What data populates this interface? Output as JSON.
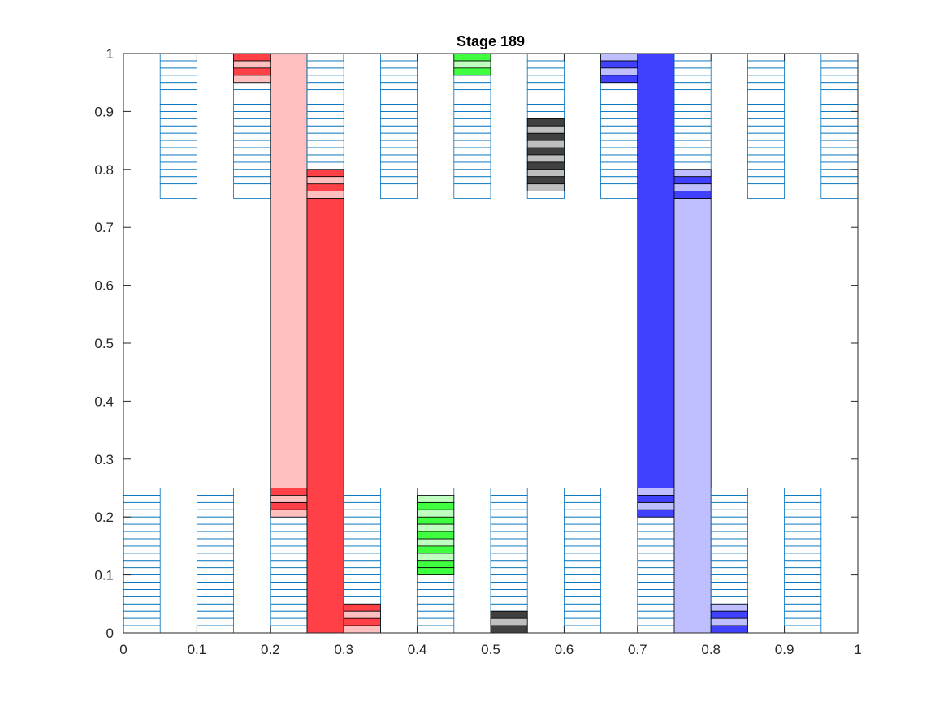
{
  "chart_data": {
    "type": "bar",
    "title": "Stage 189",
    "xlabel": "",
    "ylabel": "",
    "xlim": [
      0,
      1
    ],
    "ylim": [
      0,
      1
    ],
    "xticks": [
      "0",
      "0.1",
      "0.2",
      "0.3",
      "0.4",
      "0.5",
      "0.6",
      "0.7",
      "0.8",
      "0.9",
      "1"
    ],
    "yticks": [
      "0",
      "0.1",
      "0.2",
      "0.3",
      "0.4",
      "0.5",
      "0.6",
      "0.7",
      "0.8",
      "0.9",
      "1"
    ],
    "grid": false,
    "legend": "none",
    "cell_height": 0.0125,
    "colors": {
      "empty_outline": "#0072bd",
      "red": "#ff4046",
      "pink": "#ffbfbf",
      "green": "#40ff40",
      "lightgreen": "#bfffbf",
      "dark": "#404040",
      "gray": "#bfbfbf",
      "blue": "#4040ff",
      "lightblue": "#bfbfff",
      "edge": "#000000"
    },
    "columns": [
      {
        "x": [
          0.0,
          0.05
        ],
        "empty": [
          [
            0.0,
            0.25
          ]
        ],
        "segments": []
      },
      {
        "x": [
          0.05,
          0.1
        ],
        "empty": [
          [
            0.75,
            1.0
          ]
        ],
        "segments": []
      },
      {
        "x": [
          0.1,
          0.15
        ],
        "empty": [
          [
            0.0,
            0.25
          ]
        ],
        "segments": []
      },
      {
        "x": [
          0.15,
          0.2
        ],
        "empty": [
          [
            0.75,
            1.0
          ]
        ],
        "segments": [
          {
            "y": [
              0.9875,
              1.0
            ],
            "color": "red"
          },
          {
            "y": [
              0.975,
              0.9875
            ],
            "color": "pink"
          },
          {
            "y": [
              0.9625,
              0.975
            ],
            "color": "red"
          },
          {
            "y": [
              0.95,
              0.9625
            ],
            "color": "pink"
          }
        ]
      },
      {
        "x": [
          0.2,
          0.25
        ],
        "empty": [
          [
            0.0,
            0.25
          ]
        ],
        "segments": [
          {
            "y": [
              0.25,
              1.0
            ],
            "color": "pink"
          },
          {
            "y": [
              0.2375,
              0.25
            ],
            "color": "red"
          },
          {
            "y": [
              0.225,
              0.2375
            ],
            "color": "pink"
          },
          {
            "y": [
              0.2125,
              0.225
            ],
            "color": "red"
          },
          {
            "y": [
              0.2,
              0.2125
            ],
            "color": "pink"
          }
        ]
      },
      {
        "x": [
          0.25,
          0.3
        ],
        "empty": [
          [
            0.75,
            1.0
          ]
        ],
        "segments": [
          {
            "y": [
              0.0,
              0.75
            ],
            "color": "red"
          },
          {
            "y": [
              0.7875,
              0.8
            ],
            "color": "red"
          },
          {
            "y": [
              0.775,
              0.7875
            ],
            "color": "pink"
          },
          {
            "y": [
              0.7625,
              0.775
            ],
            "color": "red"
          },
          {
            "y": [
              0.75,
              0.7625
            ],
            "color": "pink"
          }
        ]
      },
      {
        "x": [
          0.3,
          0.35
        ],
        "empty": [
          [
            0.0,
            0.25
          ]
        ],
        "segments": [
          {
            "y": [
              0.0375,
              0.05
            ],
            "color": "red"
          },
          {
            "y": [
              0.025,
              0.0375
            ],
            "color": "pink"
          },
          {
            "y": [
              0.0125,
              0.025
            ],
            "color": "red"
          },
          {
            "y": [
              0.0,
              0.0125
            ],
            "color": "pink"
          }
        ]
      },
      {
        "x": [
          0.35,
          0.4
        ],
        "empty": [
          [
            0.75,
            1.0
          ]
        ],
        "segments": []
      },
      {
        "x": [
          0.4,
          0.45
        ],
        "empty": [
          [
            0.0,
            0.25
          ]
        ],
        "segments": [
          {
            "y": [
              0.225,
              0.2375
            ],
            "color": "lightgreen"
          },
          {
            "y": [
              0.2125,
              0.225
            ],
            "color": "green"
          },
          {
            "y": [
              0.2,
              0.2125
            ],
            "color": "lightgreen"
          },
          {
            "y": [
              0.1875,
              0.2
            ],
            "color": "green"
          },
          {
            "y": [
              0.175,
              0.1875
            ],
            "color": "lightgreen"
          },
          {
            "y": [
              0.1625,
              0.175
            ],
            "color": "green"
          },
          {
            "y": [
              0.15,
              0.1625
            ],
            "color": "lightgreen"
          },
          {
            "y": [
              0.1375,
              0.15
            ],
            "color": "green"
          },
          {
            "y": [
              0.125,
              0.1375
            ],
            "color": "lightgreen"
          },
          {
            "y": [
              0.1125,
              0.125
            ],
            "color": "green"
          },
          {
            "y": [
              0.1,
              0.1125
            ],
            "color": "green"
          }
        ]
      },
      {
        "x": [
          0.45,
          0.5
        ],
        "empty": [
          [
            0.75,
            1.0
          ]
        ],
        "segments": [
          {
            "y": [
              0.9875,
              1.0
            ],
            "color": "green"
          },
          {
            "y": [
              0.975,
              0.9875
            ],
            "color": "lightgreen"
          },
          {
            "y": [
              0.9625,
              0.975
            ],
            "color": "green"
          }
        ]
      },
      {
        "x": [
          0.5,
          0.55
        ],
        "empty": [
          [
            0.0,
            0.25
          ]
        ],
        "segments": [
          {
            "y": [
              0.025,
              0.0375
            ],
            "color": "dark"
          },
          {
            "y": [
              0.0125,
              0.025
            ],
            "color": "gray"
          },
          {
            "y": [
              0.0,
              0.0125
            ],
            "color": "dark"
          }
        ]
      },
      {
        "x": [
          0.55,
          0.6
        ],
        "empty": [
          [
            0.75,
            1.0
          ]
        ],
        "segments": [
          {
            "y": [
              0.875,
              0.8875
            ],
            "color": "dark"
          },
          {
            "y": [
              0.8625,
              0.875
            ],
            "color": "gray"
          },
          {
            "y": [
              0.85,
              0.8625
            ],
            "color": "dark"
          },
          {
            "y": [
              0.8375,
              0.85
            ],
            "color": "gray"
          },
          {
            "y": [
              0.825,
              0.8375
            ],
            "color": "dark"
          },
          {
            "y": [
              0.8125,
              0.825
            ],
            "color": "gray"
          },
          {
            "y": [
              0.8,
              0.8125
            ],
            "color": "dark"
          },
          {
            "y": [
              0.7875,
              0.8
            ],
            "color": "gray"
          },
          {
            "y": [
              0.775,
              0.7875
            ],
            "color": "dark"
          },
          {
            "y": [
              0.7625,
              0.775
            ],
            "color": "gray"
          }
        ]
      },
      {
        "x": [
          0.6,
          0.65
        ],
        "empty": [
          [
            0.0,
            0.25
          ]
        ],
        "segments": []
      },
      {
        "x": [
          0.65,
          0.7
        ],
        "empty": [
          [
            0.75,
            1.0
          ]
        ],
        "segments": [
          {
            "y": [
              0.9875,
              1.0
            ],
            "color": "lightblue"
          },
          {
            "y": [
              0.975,
              0.9875
            ],
            "color": "blue"
          },
          {
            "y": [
              0.9625,
              0.975
            ],
            "color": "lightblue"
          },
          {
            "y": [
              0.95,
              0.9625
            ],
            "color": "blue"
          }
        ]
      },
      {
        "x": [
          0.7,
          0.75
        ],
        "empty": [
          [
            0.0,
            0.25
          ]
        ],
        "segments": [
          {
            "y": [
              0.25,
              1.0
            ],
            "color": "blue"
          },
          {
            "y": [
              0.2375,
              0.25
            ],
            "color": "lightblue"
          },
          {
            "y": [
              0.225,
              0.2375
            ],
            "color": "blue"
          },
          {
            "y": [
              0.2125,
              0.225
            ],
            "color": "lightblue"
          },
          {
            "y": [
              0.2,
              0.2125
            ],
            "color": "blue"
          }
        ]
      },
      {
        "x": [
          0.75,
          0.8
        ],
        "empty": [
          [
            0.75,
            1.0
          ]
        ],
        "segments": [
          {
            "y": [
              0.0,
              0.75
            ],
            "color": "lightblue"
          },
          {
            "y": [
              0.7875,
              0.8
            ],
            "color": "lightblue"
          },
          {
            "y": [
              0.775,
              0.7875
            ],
            "color": "blue"
          },
          {
            "y": [
              0.7625,
              0.775
            ],
            "color": "lightblue"
          },
          {
            "y": [
              0.75,
              0.7625
            ],
            "color": "blue"
          }
        ]
      },
      {
        "x": [
          0.8,
          0.85
        ],
        "empty": [
          [
            0.0,
            0.25
          ]
        ],
        "segments": [
          {
            "y": [
              0.0375,
              0.05
            ],
            "color": "lightblue"
          },
          {
            "y": [
              0.025,
              0.0375
            ],
            "color": "blue"
          },
          {
            "y": [
              0.0125,
              0.025
            ],
            "color": "lightblue"
          },
          {
            "y": [
              0.0,
              0.0125
            ],
            "color": "blue"
          }
        ]
      },
      {
        "x": [
          0.85,
          0.9
        ],
        "empty": [
          [
            0.75,
            1.0
          ]
        ],
        "segments": []
      },
      {
        "x": [
          0.9,
          0.95
        ],
        "empty": [
          [
            0.0,
            0.25
          ]
        ],
        "segments": []
      },
      {
        "x": [
          0.95,
          1.0
        ],
        "empty": [
          [
            0.75,
            1.0
          ]
        ],
        "segments": []
      }
    ]
  }
}
